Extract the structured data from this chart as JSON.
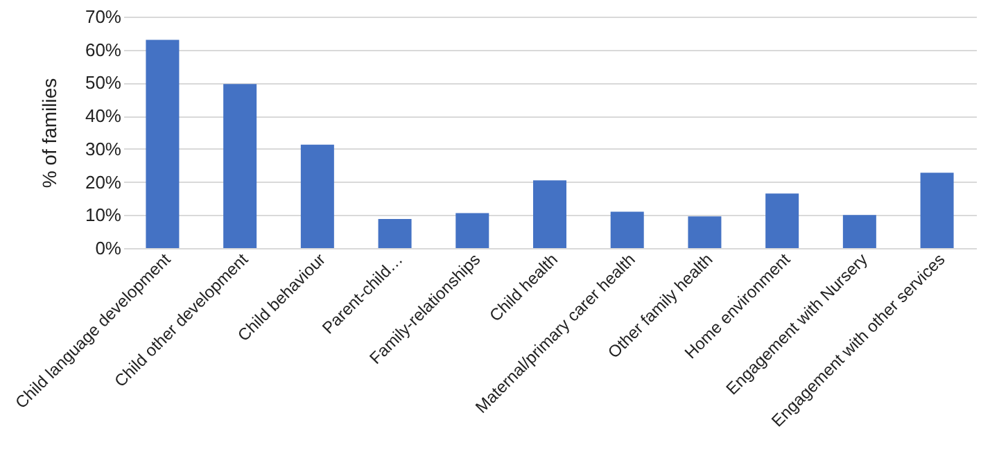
{
  "chart_data": {
    "type": "bar",
    "ylabel": "% of families",
    "categories": [
      "Child language development",
      "Child other development",
      "Child behaviour",
      "Parent-child…",
      "Family-relationships",
      "Child health",
      "Maternal/primary carer health",
      "Other family health",
      "Home environment",
      "Engagement with Nursery",
      "Engagement with other services"
    ],
    "values": [
      63,
      49.6,
      31.3,
      8.8,
      10.6,
      20.5,
      11,
      9.6,
      16.5,
      10,
      22.8
    ],
    "color": "#4472c4",
    "ylim": [
      0,
      70
    ],
    "yticks": [
      {
        "value": 0,
        "label": "0%"
      },
      {
        "value": 10,
        "label": "10%"
      },
      {
        "value": 20,
        "label": "20%"
      },
      {
        "value": 30,
        "label": "30%"
      },
      {
        "value": 40,
        "label": "40%"
      },
      {
        "value": 50,
        "label": "50%"
      },
      {
        "value": 60,
        "label": "60%"
      },
      {
        "value": 70,
        "label": "70%"
      }
    ],
    "grid": "y"
  }
}
